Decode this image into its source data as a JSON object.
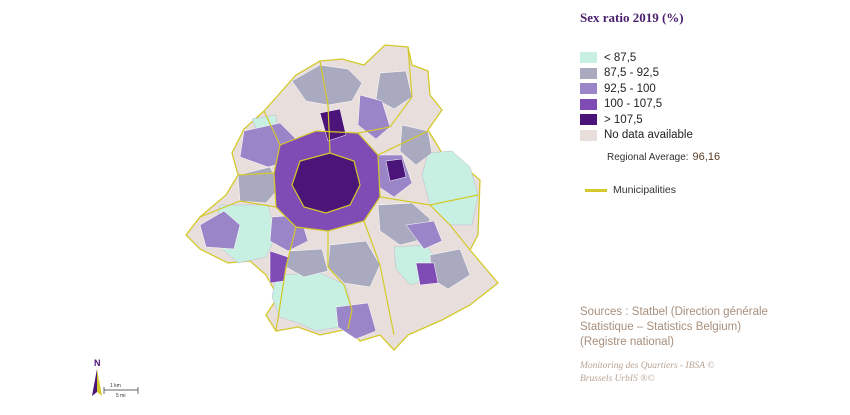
{
  "title": "Sex ratio 2019 (%)",
  "legend": {
    "items": [
      {
        "label": "< 87,5",
        "color": "#c8f0e2"
      },
      {
        "label": "87,5 - 92,5",
        "color": "#a9aabf"
      },
      {
        "label": "92,5 - 100",
        "color": "#9a85c8"
      },
      {
        "label": "100 - 107,5",
        "color": "#7f4bb5"
      },
      {
        "label": "> 107,5",
        "color": "#4b1479"
      },
      {
        "label": "No data available",
        "color": "#e8dedb"
      }
    ]
  },
  "regional_average": {
    "label": "Regional Average:",
    "value": "96,16"
  },
  "municipalities": {
    "label": "Municipalities",
    "color": "#d4c92a"
  },
  "sources": {
    "line1": "Sources : Statbel (Direction générale",
    "line2": "Statistique – Statistics Belgium)",
    "line3": "(Registre national)"
  },
  "credits": {
    "line1": "Monitoring des Quartiers - IBSA ©",
    "line2": "Brussels UrbIS ®©"
  },
  "north_arrow": {
    "label": "N",
    "icon": "north-arrow-icon"
  },
  "scale": {
    "km": "1 km",
    "mi": "5 mi"
  }
}
